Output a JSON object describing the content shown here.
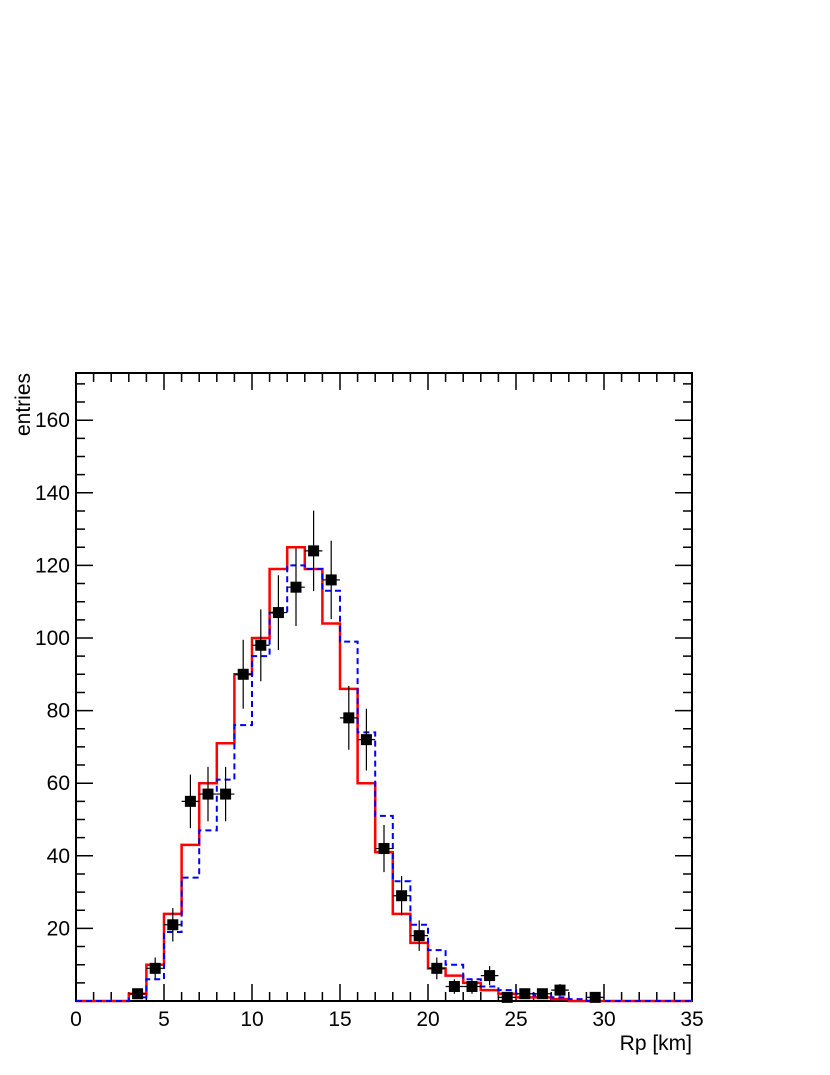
{
  "chart_data": {
    "type": "histogram",
    "title": "",
    "xlabel": "Rp [km]",
    "ylabel": "entries",
    "xlim": [
      0,
      35
    ],
    "ylim": [
      0,
      173
    ],
    "x_ticks": [
      0,
      5,
      10,
      15,
      20,
      25,
      30,
      35
    ],
    "y_ticks": [
      20,
      40,
      60,
      80,
      100,
      120,
      140,
      160
    ],
    "grid": false,
    "legend": "none",
    "bin_edges": [
      0,
      1,
      2,
      3,
      4,
      5,
      6,
      7,
      8,
      9,
      10,
      11,
      12,
      13,
      14,
      15,
      16,
      17,
      18,
      19,
      20,
      21,
      22,
      23,
      24,
      25,
      26,
      27,
      28,
      29,
      30,
      31,
      32,
      33,
      34,
      35
    ],
    "series": [
      {
        "kind": "points",
        "color": "#000000",
        "x": [
          3.5,
          4.5,
          5.5,
          6.5,
          7.5,
          8.5,
          9.5,
          10.5,
          11.5,
          12.5,
          13.5,
          14.5,
          15.5,
          16.5,
          17.5,
          18.5,
          19.5,
          20.5,
          21.5,
          22.5,
          23.5,
          24.5,
          25.5,
          26.5,
          27.5,
          29.5
        ],
        "y": [
          2,
          9,
          21,
          55,
          57,
          57,
          90,
          98,
          107,
          114,
          124,
          116,
          78,
          72,
          42,
          29,
          18,
          9,
          4,
          4,
          7,
          1,
          2,
          2,
          3,
          1
        ],
        "yerr": [
          1.4,
          3,
          4.6,
          7.4,
          7.5,
          7.5,
          9.5,
          9.9,
          10.3,
          10.7,
          11.1,
          10.8,
          8.8,
          8.5,
          6.5,
          5.4,
          4.2,
          3,
          2,
          2,
          2.6,
          1,
          1.4,
          1.4,
          1.7,
          1
        ]
      },
      {
        "kind": "step",
        "color": "#ff0000",
        "dash": "solid",
        "values": [
          0,
          0,
          0,
          2,
          10,
          24,
          43,
          60,
          71,
          90,
          100,
          119,
          125,
          119,
          104,
          86,
          60,
          41,
          24,
          16,
          9,
          7,
          5,
          3,
          2,
          1,
          1,
          0.5,
          0,
          0,
          0,
          0,
          0,
          0,
          0
        ]
      },
      {
        "kind": "step",
        "color": "#0000ff",
        "dash": "dashed",
        "values": [
          0,
          0,
          0,
          1,
          6,
          19,
          34,
          47,
          61,
          76,
          95,
          107,
          120,
          119,
          113,
          99,
          74,
          51,
          33,
          21,
          14,
          10,
          6,
          4,
          3,
          2,
          1.5,
          1,
          0.5,
          0,
          0,
          0,
          0,
          0,
          0
        ]
      }
    ]
  }
}
